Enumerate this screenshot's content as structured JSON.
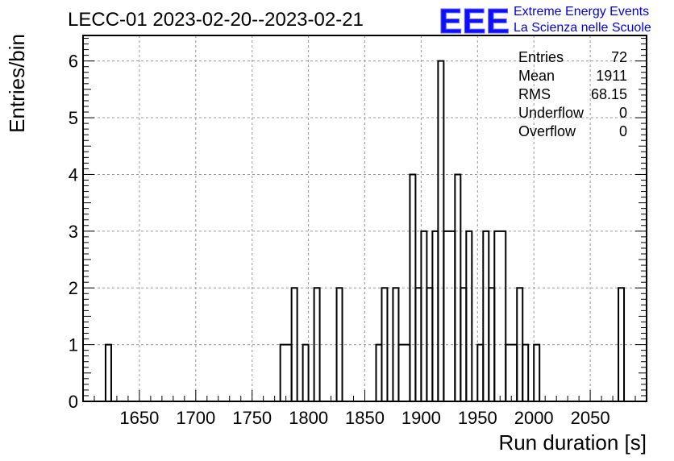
{
  "title": "LECC-01 2023-02-20--2023-02-21",
  "logo": {
    "mark": "EEE",
    "line1": "Extreme Energy Events",
    "line2": "La Scienza nelle Scuole",
    "color": "#0000ee"
  },
  "stats": {
    "rows": [
      {
        "label": "Entries",
        "value": "72"
      },
      {
        "label": "Mean",
        "value": "1911"
      },
      {
        "label": "RMS",
        "value": "68.15"
      },
      {
        "label": "Underflow",
        "value": "0"
      },
      {
        "label": "Overflow",
        "value": "0"
      }
    ]
  },
  "chart_data": {
    "type": "bar",
    "subtype": "step-histogram",
    "xlabel": "Run duration [s]",
    "ylabel": "Entries/bin",
    "xlim": [
      1600,
      2100
    ],
    "ylim": [
      0,
      6.45
    ],
    "x_ticks": [
      1650,
      1700,
      1750,
      1800,
      1850,
      1900,
      1950,
      2000,
      2050
    ],
    "y_ticks": [
      0,
      1,
      2,
      3,
      4,
      5,
      6
    ],
    "grid": true,
    "line_color": "#000000",
    "bins": [
      {
        "x0": 1620,
        "x1": 1625,
        "value": 1
      },
      {
        "x0": 1775,
        "x1": 1785,
        "value": 1
      },
      {
        "x0": 1785,
        "x1": 1790,
        "value": 2
      },
      {
        "x0": 1795,
        "x1": 1800,
        "value": 1
      },
      {
        "x0": 1805,
        "x1": 1810,
        "value": 2
      },
      {
        "x0": 1825,
        "x1": 1830,
        "value": 2
      },
      {
        "x0": 1860,
        "x1": 1865,
        "value": 1
      },
      {
        "x0": 1865,
        "x1": 1870,
        "value": 2
      },
      {
        "x0": 1875,
        "x1": 1880,
        "value": 2
      },
      {
        "x0": 1880,
        "x1": 1890,
        "value": 1
      },
      {
        "x0": 1890,
        "x1": 1895,
        "value": 4
      },
      {
        "x0": 1895,
        "x1": 1900,
        "value": 2
      },
      {
        "x0": 1900,
        "x1": 1905,
        "value": 3
      },
      {
        "x0": 1905,
        "x1": 1910,
        "value": 2
      },
      {
        "x0": 1910,
        "x1": 1915,
        "value": 3
      },
      {
        "x0": 1915,
        "x1": 1920,
        "value": 6
      },
      {
        "x0": 1920,
        "x1": 1930,
        "value": 3
      },
      {
        "x0": 1930,
        "x1": 1935,
        "value": 4
      },
      {
        "x0": 1935,
        "x1": 1940,
        "value": 2
      },
      {
        "x0": 1940,
        "x1": 1945,
        "value": 3
      },
      {
        "x0": 1950,
        "x1": 1955,
        "value": 1
      },
      {
        "x0": 1955,
        "x1": 1960,
        "value": 3
      },
      {
        "x0": 1960,
        "x1": 1965,
        "value": 2
      },
      {
        "x0": 1965,
        "x1": 1975,
        "value": 3
      },
      {
        "x0": 1975,
        "x1": 1985,
        "value": 1
      },
      {
        "x0": 1985,
        "x1": 1990,
        "value": 2
      },
      {
        "x0": 1990,
        "x1": 1995,
        "value": 1
      },
      {
        "x0": 2000,
        "x1": 2005,
        "value": 1
      },
      {
        "x0": 2075,
        "x1": 2080,
        "value": 2
      }
    ]
  }
}
